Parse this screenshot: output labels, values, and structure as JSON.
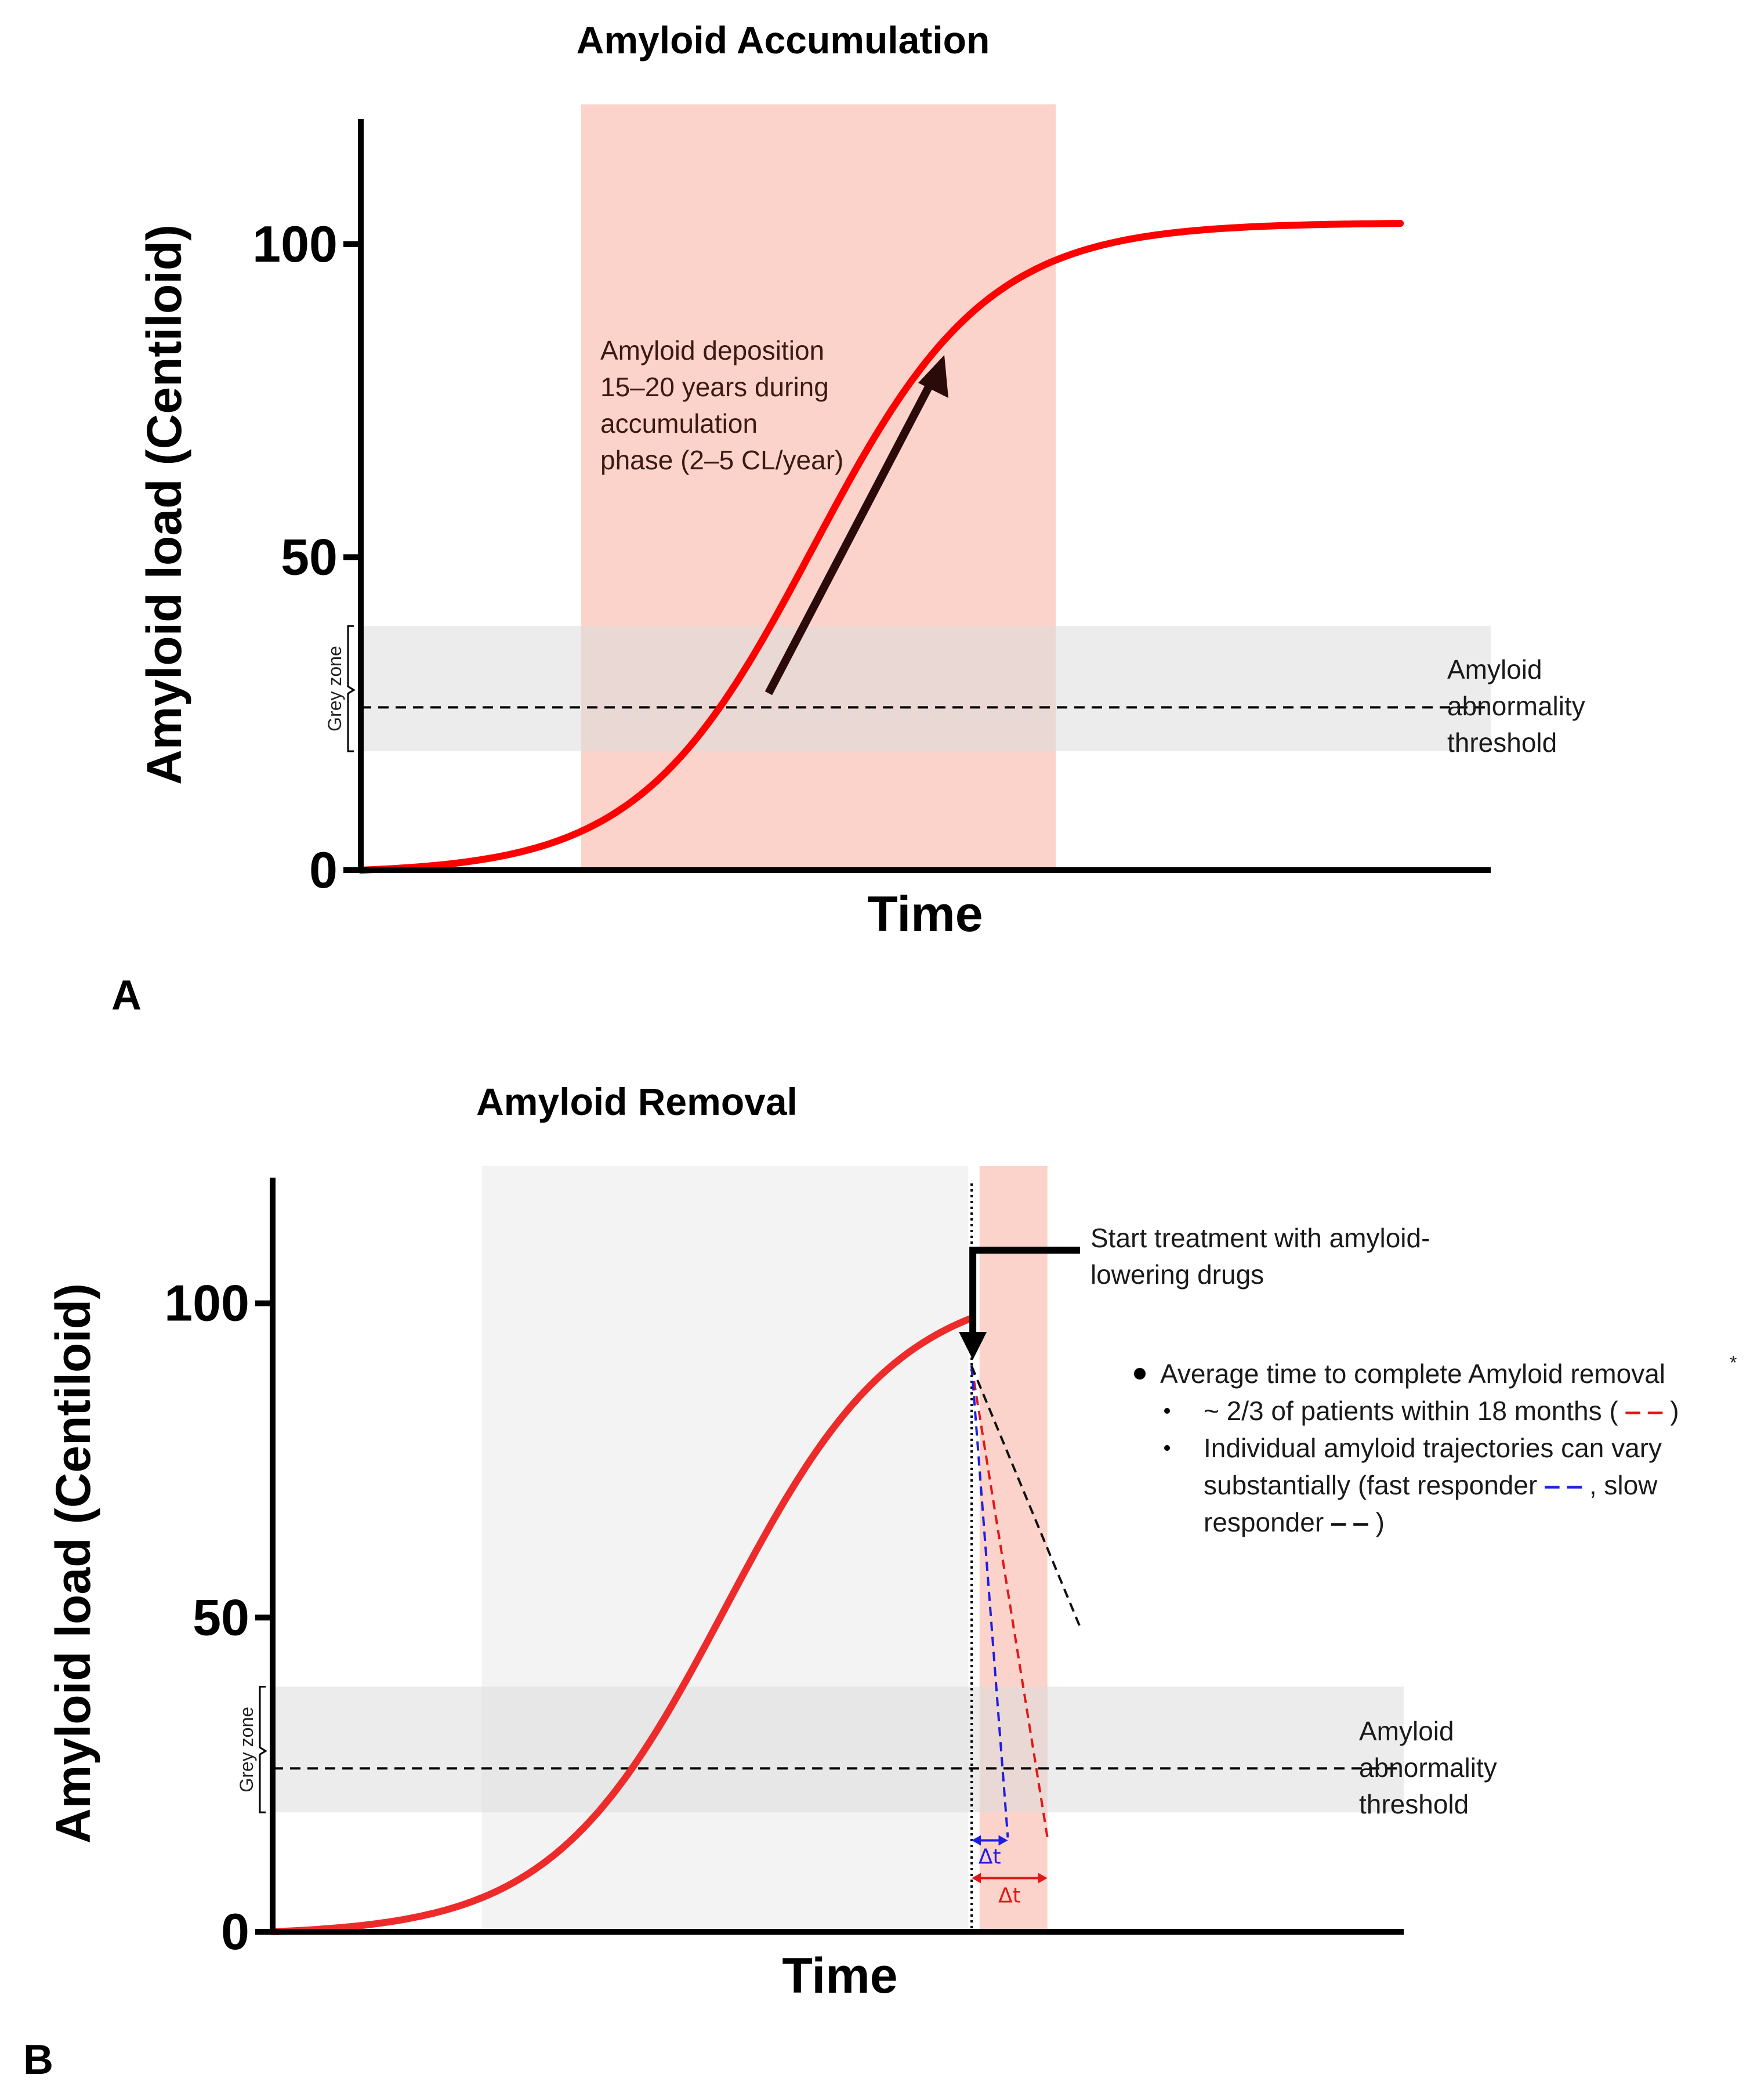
{
  "chart_data": [
    {
      "panel": "A",
      "type": "line",
      "title": "Amyloid Accumulation",
      "xlabel": "Time",
      "ylabel": "Amyloid load (Centiloid)",
      "yticks": [
        "0",
        "50",
        "100"
      ],
      "ylim": [
        0,
        120
      ],
      "xlim": [
        0,
        100
      ],
      "threshold": 26,
      "grey_zone": [
        19,
        39
      ],
      "grey_zone_label": "Grey zone",
      "threshold_label": [
        "Amyloid",
        "abnormality",
        "threshold"
      ],
      "highlight_x": [
        19.5,
        61.5
      ],
      "curve_color": "#ff0000",
      "curve_sigmoid": {
        "L": 104,
        "x0": 40,
        "k": 0.13,
        "x_start": 0,
        "x_end": 92
      },
      "arrow_annotation": [
        "Amyloid deposition",
        "15–20 years during",
        "accumulation",
        "phase (2–5 CL/year)"
      ]
    },
    {
      "panel": "B",
      "type": "line",
      "title": "Amyloid Removal",
      "xlabel": "Time",
      "ylabel": "Amyloid load (Centiloid)",
      "yticks": [
        "0",
        "50",
        "100"
      ],
      "ylim": [
        0,
        120
      ],
      "xlim": [
        0,
        100
      ],
      "threshold": 26,
      "grey_zone": [
        19,
        39
      ],
      "grey_zone_label": "Grey zone",
      "threshold_label": [
        "Amyloid",
        "abnormality",
        "threshold"
      ],
      "highlight_grey_x": [
        18.5,
        61.5
      ],
      "highlight_red_x": [
        62.5,
        68.5
      ],
      "treatment_x": 61.8,
      "curve_color": "#ee2b2b",
      "curve_sigmoid": {
        "L": 104,
        "x0": 40,
        "k": 0.13,
        "x_start": 0,
        "x_end": 61.8
      },
      "treatment_label": [
        "Start treatment with amyloid-",
        "lowering drugs"
      ],
      "trajectories": [
        {
          "name": "average",
          "color": "#e01818",
          "x": [
            61.8,
            68.5
          ],
          "y": [
            90,
            15
          ]
        },
        {
          "name": "fast responder",
          "color": "#1f1fe0",
          "x": [
            61.8,
            65.0
          ],
          "y": [
            90,
            15
          ]
        },
        {
          "name": "slow responder",
          "color": "#111111",
          "x": [
            61.8,
            71.5
          ],
          "y": [
            90,
            48
          ]
        }
      ],
      "delta_label": "Δt",
      "bullets": {
        "main": "Average time to complete Amyloid removal",
        "main_sup": "*",
        "sub1_text": "~ 2/3 of patients within 18 months (",
        "sub1_end": ")",
        "sub2_line1": "Individual amyloid trajectories can vary",
        "sub2_line2_a": "substantially (fast responder ",
        "sub2_line2_b": ", slow",
        "sub2_line3_a": "responder ",
        "sub2_line3_b": ")"
      }
    }
  ],
  "panel_labels": [
    "A",
    "B"
  ]
}
